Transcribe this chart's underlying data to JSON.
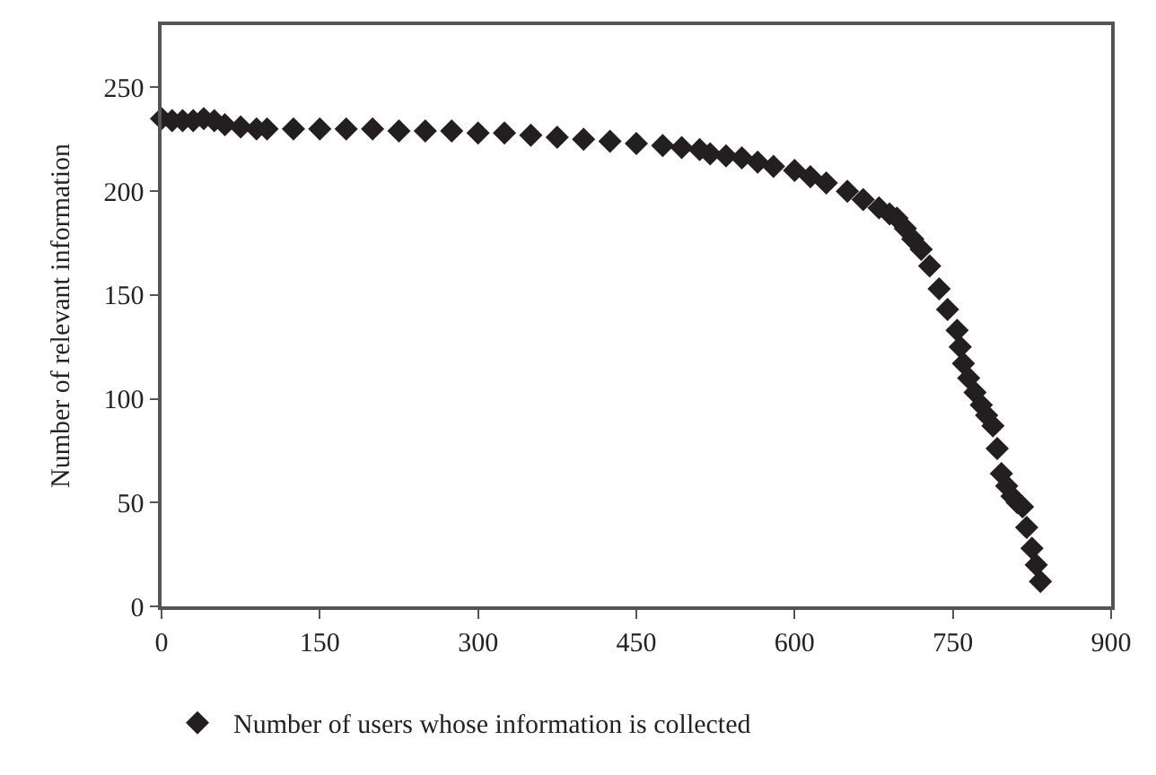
{
  "chart_data": {
    "type": "scatter",
    "ylabel": "Number of relevant information",
    "marker": "diamond",
    "legend": "bottom",
    "xlim": [
      0,
      900
    ],
    "xticks": [
      0,
      150,
      300,
      450,
      600,
      750,
      900
    ],
    "ylim": [
      0,
      280
    ],
    "yticks": [
      0,
      50,
      100,
      150,
      200,
      250
    ],
    "series": [
      {
        "name": "Number of users whose information is collected",
        "color": "#231f20",
        "x": [
          0,
          10,
          20,
          30,
          40,
          50,
          60,
          75,
          90,
          100,
          125,
          150,
          175,
          200,
          225,
          250,
          275,
          300,
          325,
          350,
          375,
          400,
          425,
          450,
          475,
          493,
          510,
          520,
          535,
          550,
          565,
          580,
          600,
          615,
          630,
          650,
          665,
          680,
          690,
          697,
          705,
          712,
          720,
          728,
          737,
          745,
          754,
          757,
          760,
          765,
          771,
          777,
          782,
          788,
          792,
          796,
          801,
          806,
          811,
          816,
          820,
          825,
          829,
          833
        ],
        "values": [
          235,
          234,
          234,
          234,
          235,
          234,
          232,
          231,
          230,
          230,
          230,
          230,
          230,
          230,
          229,
          229,
          229,
          228,
          228,
          227,
          226,
          225,
          224,
          223,
          222,
          221,
          220,
          218,
          217,
          216,
          214,
          212,
          210,
          207,
          204,
          200,
          196,
          192,
          189,
          187,
          182,
          177,
          172,
          164,
          153,
          143,
          133,
          125,
          117,
          110,
          103,
          97,
          92,
          87,
          76,
          64,
          58,
          53,
          50,
          48,
          38,
          28,
          20,
          12
        ]
      }
    ]
  }
}
